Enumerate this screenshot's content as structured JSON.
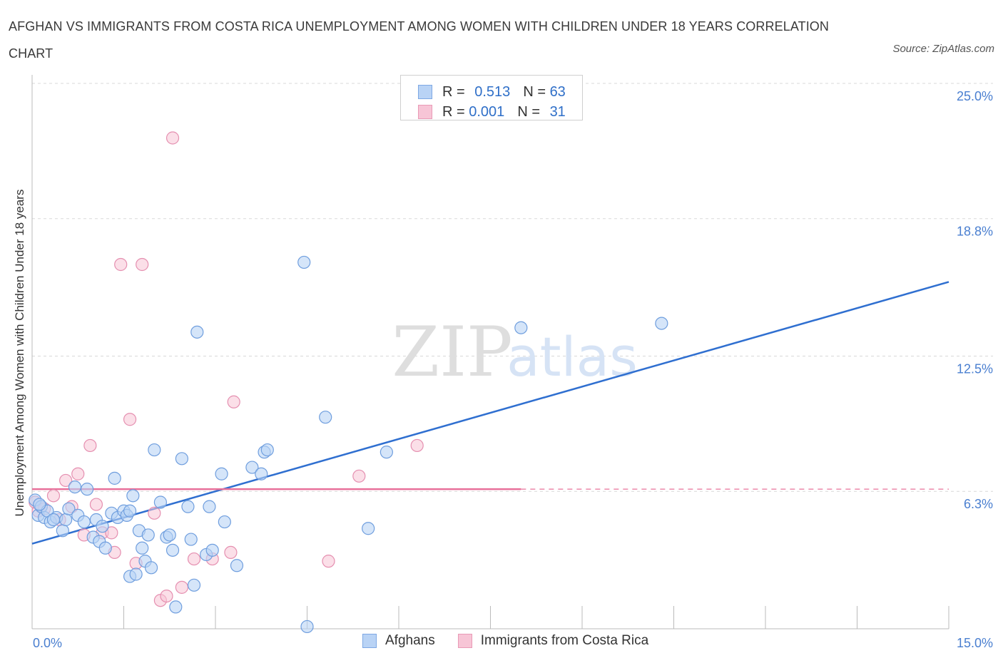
{
  "title": "AFGHAN VS IMMIGRANTS FROM COSTA RICA UNEMPLOYMENT AMONG WOMEN WITH CHILDREN UNDER 18 YEARS CORRELATION CHART",
  "source": "Source: ZipAtlas.com",
  "watermark": {
    "zip": "ZIP",
    "atlas": "atlas"
  },
  "colors": {
    "blue": "#2f6fd0",
    "blue_fill": "#b9d3f5",
    "pink": "#e8709a",
    "pink_fill": "#f7c5d6",
    "tick": "#4a7fd0",
    "grid": "#d9d9d9"
  },
  "legend_top": {
    "rows": [
      {
        "r_label": "R =",
        "r_value": "0.513",
        "n_label": "N =",
        "n_value": "63"
      },
      {
        "r_label": "R =",
        "r_value": "0.001",
        "n_label": "N =",
        "n_value": "31"
      }
    ]
  },
  "legend_bottom": {
    "series_a": "Afghans",
    "series_b": "Immigrants from Costa Rica"
  },
  "chart_data": {
    "type": "scatter",
    "title": "AFGHAN VS IMMIGRANTS FROM COSTA RICA UNEMPLOYMENT AMONG WOMEN WITH CHILDREN UNDER 18 YEARS CORRELATION CHART",
    "xlabel": "",
    "ylabel": "Unemployment Among Women with Children Under 18 years",
    "xlim": [
      0,
      15
    ],
    "ylim": [
      0,
      25
    ],
    "x_tick_labels": {
      "min": "0.0%",
      "max": "15.0%"
    },
    "y_tick_labels": [
      "25.0%",
      "18.8%",
      "12.5%",
      "6.3%"
    ],
    "y_tick_values": [
      25.0,
      18.8,
      12.5,
      6.3
    ],
    "series": [
      {
        "name": "Afghans",
        "R": 0.513,
        "N": 63,
        "trend": {
          "x": [
            0,
            15
          ],
          "y": [
            3.9,
            15.9
          ]
        },
        "points": [
          [
            0.05,
            5.9
          ],
          [
            0.1,
            5.2
          ],
          [
            0.15,
            5.6
          ],
          [
            0.2,
            5.1
          ],
          [
            0.25,
            5.4
          ],
          [
            0.3,
            4.9
          ],
          [
            0.4,
            5.1
          ],
          [
            0.5,
            4.5
          ],
          [
            0.55,
            5.0
          ],
          [
            0.6,
            5.5
          ],
          [
            0.7,
            6.5
          ],
          [
            0.75,
            5.2
          ],
          [
            0.85,
            4.9
          ],
          [
            0.9,
            6.4
          ],
          [
            1.0,
            4.2
          ],
          [
            1.05,
            5.0
          ],
          [
            1.1,
            4.0
          ],
          [
            1.15,
            4.7
          ],
          [
            1.2,
            3.7
          ],
          [
            1.3,
            5.3
          ],
          [
            1.35,
            6.9
          ],
          [
            1.4,
            5.1
          ],
          [
            1.5,
            5.4
          ],
          [
            1.55,
            5.2
          ],
          [
            1.6,
            5.4
          ],
          [
            1.6,
            2.4
          ],
          [
            1.65,
            6.1
          ],
          [
            1.7,
            2.5
          ],
          [
            1.75,
            4.5
          ],
          [
            1.8,
            3.7
          ],
          [
            1.85,
            3.1
          ],
          [
            1.9,
            4.3
          ],
          [
            1.95,
            2.8
          ],
          [
            2.0,
            8.2
          ],
          [
            2.1,
            5.8
          ],
          [
            2.2,
            4.2
          ],
          [
            2.25,
            4.3
          ],
          [
            2.3,
            3.6
          ],
          [
            2.35,
            1.0
          ],
          [
            2.45,
            7.8
          ],
          [
            2.55,
            5.6
          ],
          [
            2.6,
            4.1
          ],
          [
            2.65,
            2.0
          ],
          [
            2.7,
            13.6
          ],
          [
            2.85,
            3.4
          ],
          [
            2.9,
            5.6
          ],
          [
            2.95,
            3.6
          ],
          [
            3.1,
            7.1
          ],
          [
            3.15,
            4.9
          ],
          [
            3.35,
            2.9
          ],
          [
            3.6,
            7.4
          ],
          [
            3.75,
            7.1
          ],
          [
            3.8,
            8.1
          ],
          [
            3.85,
            8.2
          ],
          [
            4.45,
            16.8
          ],
          [
            4.5,
            0.1
          ],
          [
            4.8,
            9.7
          ],
          [
            5.5,
            4.6
          ],
          [
            5.8,
            8.1
          ],
          [
            8.0,
            13.8
          ],
          [
            10.3,
            14.0
          ],
          [
            0.12,
            5.7
          ],
          [
            0.35,
            5.0
          ]
        ]
      },
      {
        "name": "Immigrants from Costa Rica",
        "R": 0.001,
        "N": 31,
        "trend": {
          "x": [
            0,
            8.0
          ],
          "y": [
            6.4,
            6.4
          ],
          "dashed_to": 15
        },
        "points": [
          [
            0.05,
            5.8
          ],
          [
            0.1,
            5.4
          ],
          [
            0.15,
            5.6
          ],
          [
            0.2,
            5.5
          ],
          [
            0.35,
            6.1
          ],
          [
            0.45,
            5.0
          ],
          [
            0.55,
            6.8
          ],
          [
            0.65,
            5.6
          ],
          [
            0.75,
            7.1
          ],
          [
            0.85,
            4.3
          ],
          [
            0.95,
            8.4
          ],
          [
            1.05,
            5.7
          ],
          [
            1.15,
            4.4
          ],
          [
            1.3,
            4.4
          ],
          [
            1.35,
            3.5
          ],
          [
            1.45,
            16.7
          ],
          [
            1.6,
            9.6
          ],
          [
            1.7,
            3.0
          ],
          [
            1.8,
            16.7
          ],
          [
            2.0,
            5.3
          ],
          [
            2.1,
            1.3
          ],
          [
            2.2,
            1.5
          ],
          [
            2.3,
            22.5
          ],
          [
            2.45,
            1.9
          ],
          [
            2.65,
            3.2
          ],
          [
            2.95,
            3.2
          ],
          [
            3.25,
            3.5
          ],
          [
            3.3,
            10.4
          ],
          [
            4.85,
            3.1
          ],
          [
            5.35,
            7.0
          ],
          [
            6.3,
            8.4
          ]
        ]
      }
    ]
  }
}
